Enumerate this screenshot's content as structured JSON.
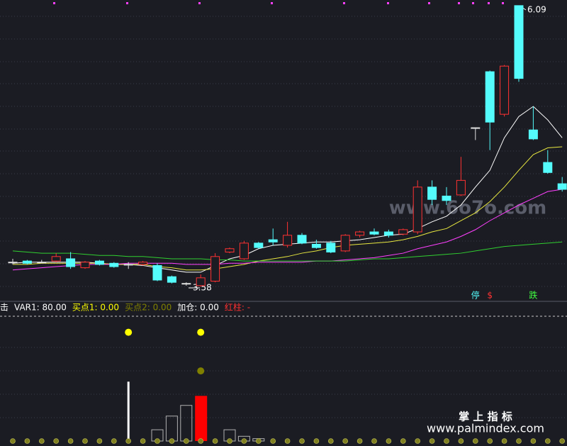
{
  "chart_data": [
    {
      "type": "candlestick",
      "open": [
        3.8,
        3.81,
        3.8,
        3.81,
        3.83,
        3.75,
        3.81,
        3.79,
        3.78,
        3.78,
        3.77,
        3.67,
        3.61,
        3.59,
        3.63,
        3.89,
        3.83,
        3.97,
        4.0,
        3.95,
        4.04,
        3.96,
        3.97,
        3.9,
        4.04,
        4.07,
        4.07,
        4.05,
        4.07,
        4.47,
        4.39,
        4.4,
        5.0,
        5.5,
        5.12,
        6.09,
        4.98,
        4.69,
        4.5
      ],
      "high": [
        3.83,
        3.82,
        3.82,
        3.88,
        3.89,
        3.81,
        3.82,
        3.8,
        3.8,
        3.81,
        3.79,
        3.68,
        3.62,
        3.69,
        3.88,
        3.93,
        3.99,
        3.98,
        4.1,
        4.16,
        4.06,
        4.0,
        3.99,
        4.05,
        4.08,
        4.1,
        4.09,
        4.1,
        4.53,
        4.53,
        4.47,
        4.74,
        5.0,
        5.51,
        5.56,
        6.09,
        5.19,
        4.8,
        4.56
      ],
      "low": [
        3.78,
        3.78,
        3.79,
        3.8,
        3.74,
        3.74,
        3.77,
        3.75,
        3.74,
        3.77,
        3.63,
        3.61,
        3.59,
        3.58,
        3.62,
        3.88,
        3.82,
        3.92,
        3.95,
        3.93,
        3.96,
        3.92,
        3.88,
        3.89,
        4.02,
        4.04,
        4.02,
        4.04,
        4.05,
        4.31,
        4.31,
        4.39,
        4.89,
        4.8,
        5.1,
        5.41,
        4.89,
        4.59,
        4.43
      ],
      "close": [
        3.8,
        3.79,
        3.8,
        3.85,
        3.76,
        3.8,
        3.78,
        3.76,
        3.78,
        3.8,
        3.64,
        3.62,
        3.61,
        3.66,
        3.85,
        3.92,
        3.97,
        3.93,
        3.98,
        4.04,
        3.97,
        3.93,
        3.89,
        4.04,
        4.07,
        4.05,
        4.04,
        4.09,
        4.47,
        4.36,
        4.35,
        4.53,
        5.0,
        5.05,
        5.55,
        5.44,
        4.9,
        4.6,
        4.45
      ],
      "ylim": [
        3.45,
        6.14
      ],
      "up_color": "#ff3232",
      "down_color": "#54fcfc",
      "flat_color": "#e0e0e0",
      "lines": [
        {
          "color": "#ffffff",
          "values": [
            3.79,
            3.8,
            3.8,
            3.8,
            3.8,
            3.8,
            3.79,
            3.78,
            3.78,
            3.77,
            3.75,
            3.73,
            3.71,
            3.71,
            3.77,
            3.83,
            3.86,
            3.92,
            3.95,
            3.96,
            3.97,
            3.98,
            3.98,
            3.99,
            4.0,
            4.02,
            4.04,
            4.05,
            4.1,
            4.16,
            4.21,
            4.31,
            4.47,
            4.62,
            4.91,
            5.1,
            5.19,
            5.07,
            4.91
          ]
        },
        {
          "color": "#e8e840",
          "values": [
            3.78,
            3.78,
            3.79,
            3.79,
            3.79,
            3.79,
            3.79,
            3.78,
            3.78,
            3.78,
            3.76,
            3.75,
            3.73,
            3.73,
            3.74,
            3.76,
            3.78,
            3.81,
            3.83,
            3.85,
            3.88,
            3.9,
            3.93,
            3.95,
            3.96,
            3.97,
            3.98,
            4.0,
            4.03,
            4.07,
            4.1,
            4.17,
            4.24,
            4.34,
            4.47,
            4.62,
            4.76,
            4.82,
            4.83
          ]
        },
        {
          "color": "#ff40ff",
          "values": [
            3.73,
            3.74,
            3.75,
            3.76,
            3.77,
            3.78,
            3.78,
            3.78,
            3.79,
            3.79,
            3.79,
            3.79,
            3.78,
            3.78,
            3.78,
            3.79,
            3.79,
            3.8,
            3.8,
            3.8,
            3.8,
            3.81,
            3.81,
            3.82,
            3.83,
            3.84,
            3.86,
            3.88,
            3.92,
            3.95,
            3.98,
            4.03,
            4.09,
            4.17,
            4.24,
            4.31,
            4.37,
            4.43,
            4.45
          ]
        },
        {
          "color": "#30d030",
          "values": [
            3.9,
            3.89,
            3.88,
            3.88,
            3.88,
            3.87,
            3.86,
            3.86,
            3.85,
            3.85,
            3.84,
            3.83,
            3.83,
            3.83,
            3.82,
            3.82,
            3.81,
            3.81,
            3.81,
            3.81,
            3.81,
            3.81,
            3.81,
            3.81,
            3.82,
            3.83,
            3.83,
            3.84,
            3.85,
            3.86,
            3.87,
            3.88,
            3.9,
            3.92,
            3.94,
            3.95,
            3.96,
            3.97,
            3.98
          ]
        }
      ],
      "signal_labels": [
        null,
        null,
        null,
        null,
        null,
        null,
        null,
        null,
        null,
        null,
        null,
        null,
        null,
        null,
        null,
        null,
        null,
        null,
        null,
        null,
        null,
        null,
        null,
        null,
        null,
        null,
        null,
        null,
        null,
        null,
        null,
        null,
        "停",
        "$",
        null,
        null,
        "跌",
        null,
        null
      ],
      "signal_colors": [
        "#54fcfc",
        "#ff3232",
        "#40ff40"
      ],
      "watermark": "www.6o7o.com"
    },
    {
      "type": "bar",
      "legend": [
        {
          "text": "击",
          "color": "#ffffff"
        },
        {
          "text": "VAR1: 80.00",
          "color": "#ffffff"
        },
        {
          "text": "买点1: 0.00",
          "color": "#ffff00"
        },
        {
          "text": "买点2: 0.00",
          "color": "#808000"
        },
        {
          "text": "加仓: 0.00",
          "color": "#ffffff"
        },
        {
          "text": "红柱: -",
          "color": "#ff3030"
        }
      ],
      "ylim": [
        0,
        210
      ],
      "series": [
        {
          "color": "#ffffff",
          "style": "line",
          "values": [
            null,
            null,
            null,
            null,
            null,
            null,
            null,
            null,
            100,
            null,
            null,
            null,
            null,
            null,
            null,
            null,
            null,
            null,
            null,
            null,
            null,
            null,
            null,
            null,
            null,
            null,
            null,
            null,
            null,
            null,
            null,
            null,
            null,
            null,
            null,
            null,
            null,
            null,
            null
          ]
        },
        {
          "color": "#b0b0b0",
          "style": "hollow",
          "values": [
            null,
            null,
            null,
            null,
            null,
            null,
            null,
            null,
            null,
            null,
            19,
            42,
            60,
            null,
            null,
            19,
            8,
            4,
            null,
            null,
            null,
            null,
            null,
            null,
            null,
            null,
            null,
            null,
            null,
            null,
            null,
            null,
            null,
            null,
            null,
            null,
            null,
            null,
            null
          ]
        },
        {
          "color": "#ff0000",
          "style": "fill",
          "values": [
            null,
            null,
            null,
            null,
            null,
            null,
            null,
            null,
            null,
            null,
            null,
            null,
            null,
            76,
            null,
            null,
            null,
            null,
            null,
            null,
            null,
            null,
            null,
            null,
            null,
            null,
            null,
            null,
            null,
            null,
            null,
            null,
            null,
            null,
            null,
            null,
            null,
            null,
            null
          ]
        },
        {
          "color": "#ffff00",
          "style": "dot",
          "values": [
            null,
            null,
            null,
            null,
            null,
            null,
            null,
            null,
            183,
            null,
            null,
            null,
            null,
            183,
            null,
            null,
            null,
            null,
            null,
            null,
            null,
            null,
            null,
            null,
            null,
            null,
            null,
            null,
            null,
            null,
            null,
            null,
            null,
            null,
            null,
            null,
            null,
            null,
            null
          ]
        },
        {
          "color": "#808000",
          "style": "dot",
          "values": [
            null,
            null,
            null,
            null,
            null,
            null,
            null,
            null,
            null,
            null,
            null,
            null,
            null,
            118,
            null,
            null,
            null,
            null,
            null,
            null,
            null,
            null,
            null,
            null,
            null,
            null,
            null,
            null,
            null,
            null,
            null,
            null,
            null,
            null,
            null,
            null,
            null,
            null,
            null
          ]
        },
        {
          "color": "#808020",
          "style": "small-dot",
          "values": [
            0,
            0,
            0,
            0,
            0,
            0,
            0,
            0,
            0,
            0,
            0,
            0,
            0,
            0,
            0,
            0,
            0,
            0,
            0,
            0,
            0,
            0,
            0,
            0,
            0,
            0,
            0,
            0,
            0,
            0,
            0,
            0,
            0,
            0,
            0,
            0,
            0,
            0,
            0
          ]
        }
      ]
    }
  ],
  "footer": {
    "title": "掌 上 指 标",
    "url": "www.palmindex.com"
  }
}
